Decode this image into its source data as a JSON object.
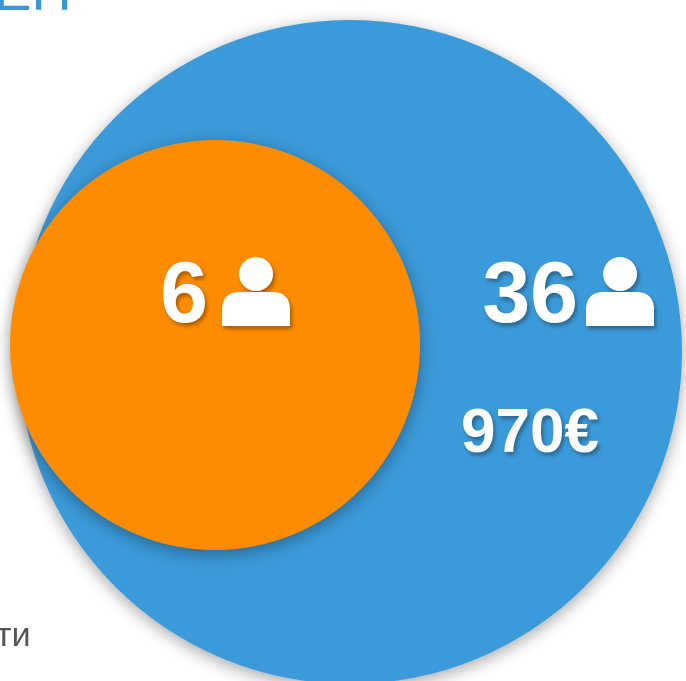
{
  "header": {
    "title": "ЕН"
  },
  "inner_circle": {
    "count": 6
  },
  "outer_circle": {
    "count": 36,
    "amount": "970€"
  },
  "footer": {
    "label": "ти"
  }
}
